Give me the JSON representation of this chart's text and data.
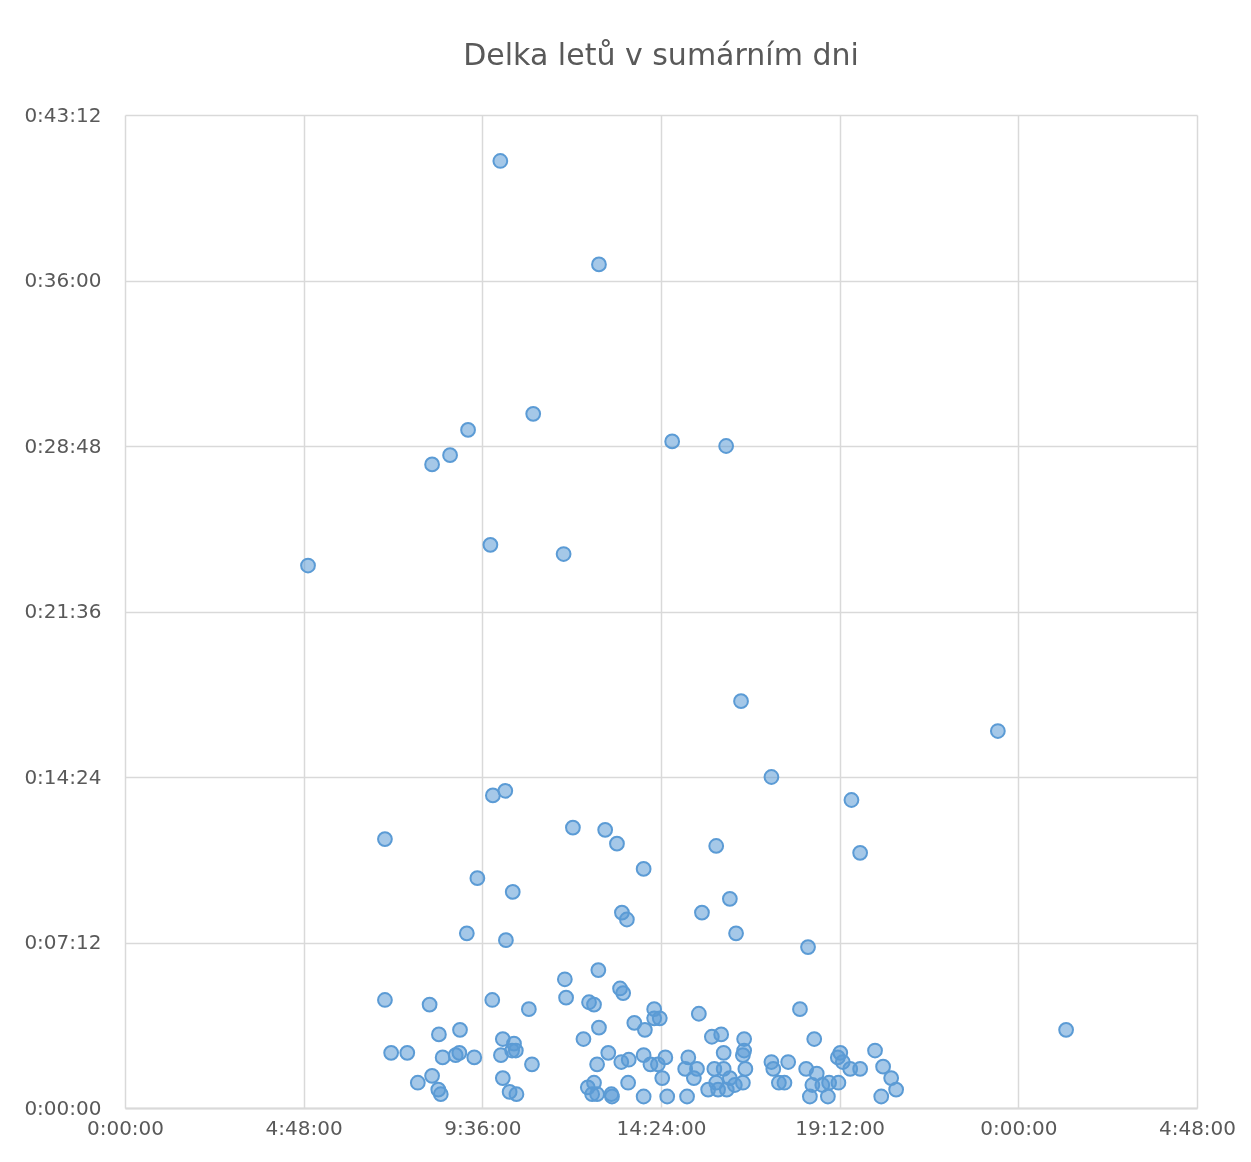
{
  "chart_data": {
    "type": "scatter",
    "title": "Delka letů v sumárním dni",
    "x": [
      "2000-01-01T10:05",
      "2000-01-01T12:44",
      "2000-01-01T10:58",
      "2000-01-01T09:13",
      "2000-01-01T08:44",
      "2000-01-01T08:15",
      "2000-01-01T14:42",
      "2000-01-01T16:09",
      "2000-01-01T09:49",
      "2000-01-01T11:47",
      "2000-01-01T04:55",
      "2000-01-01T16:33",
      "2000-01-01T23:27",
      "2000-01-01T17:22",
      "2000-01-01T19:31",
      "2000-01-01T09:53",
      "2000-01-01T10:13",
      "2000-01-01T06:59",
      "2000-01-01T12:02",
      "2000-01-01T12:54",
      "2000-01-01T13:13",
      "2000-01-01T15:53",
      "2000-01-01T19:45",
      "2000-01-01T13:56",
      "2000-01-01T09:28",
      "2000-01-01T10:25",
      "2000-01-01T16:15",
      "2000-01-01T13:21",
      "2000-01-01T15:30",
      "2000-01-01T13:29",
      "2000-01-01T09:11",
      "2000-01-01T16:25",
      "2000-01-01T10:14",
      "2000-01-01T18:21",
      "2000-01-01T12:43",
      "2000-01-01T11:49",
      "2000-01-01T13:18",
      "2000-01-01T11:51",
      "2000-01-01T13:23",
      "2000-01-01T12:28",
      "2000-01-01T12:36",
      "2000-01-01T06:59",
      "2000-01-01T08:11",
      "2000-01-01T09:52",
      "2000-01-01T10:51",
      "2000-01-01T14:13",
      "2000-01-01T14:22",
      "2000-01-01T14:13",
      "2000-01-01T15:25",
      "2000-01-01T18:08",
      "2000-01-02T01:17",
      "2000-01-01T12:44",
      "2000-01-01T13:41",
      "2000-01-01T13:58",
      "2000-01-01T09:00",
      "2000-01-01T08:26",
      "2000-01-01T15:46",
      "2000-01-01T16:01",
      "2000-01-01T16:38",
      "2000-01-01T18:31",
      "2000-01-01T10:09",
      "2000-01-01T10:27",
      "2000-01-01T12:19",
      "2000-01-01T07:09",
      "2000-01-01T07:35",
      "2000-01-01T08:59",
      "2000-01-01T08:53",
      "2000-01-01T08:32",
      "2000-01-01T09:23",
      "2000-01-01T10:06",
      "2000-01-01T10:24",
      "2000-01-01T10:30",
      "2000-01-01T12:59",
      "2000-01-01T13:56",
      "2000-01-01T13:32",
      "2000-01-01T13:20",
      "2000-01-01T14:31",
      "2000-01-01T15:08",
      "2000-01-01T16:05",
      "2000-01-01T16:36",
      "2000-01-01T16:38",
      "2000-01-01T17:22",
      "2000-01-01T17:49",
      "2000-01-01T19:13",
      "2000-01-01T19:09",
      "2000-01-01T19:17",
      "2000-01-01T20:09",
      "2000-01-01T20:22",
      "2000-01-01T12:41",
      "2000-01-01T10:56",
      "2000-01-01T14:19",
      "2000-01-01T14:07",
      "2000-01-01T15:03",
      "2000-01-01T15:22",
      "2000-01-01T15:50",
      "2000-01-01T16:05",
      "2000-01-01T16:40",
      "2000-01-01T17:25",
      "2000-01-01T18:18",
      "2000-01-01T18:35",
      "2000-01-01T19:29",
      "2000-01-01T19:45",
      "2000-01-01T08:15",
      "2000-01-01T10:09",
      "2000-01-01T14:26",
      "2000-01-01T15:17",
      "2000-01-01T16:15",
      "2000-01-01T20:35",
      "2000-01-01T07:52",
      "2000-01-01T13:31",
      "2000-01-01T15:53",
      "2000-01-01T16:36",
      "2000-01-01T17:34",
      "2000-01-01T17:43",
      "2000-01-01T18:55",
      "2000-01-01T19:10",
      "2000-01-01T12:26",
      "2000-01-01T12:36",
      "2000-01-01T16:23",
      "2000-01-01T18:28",
      "2000-01-01T18:44",
      "2000-01-01T15:40",
      "2000-01-01T15:56",
      "2000-01-01T16:10",
      "2000-01-01T20:43",
      "2000-01-01T08:25",
      "2000-01-01T10:20",
      "2000-01-01T08:29",
      "2000-01-01T10:31",
      "2000-01-01T12:33",
      "2000-01-01T12:41",
      "2000-01-01T13:04",
      "2000-01-01T13:05",
      "2000-01-01T13:56",
      "2000-01-01T14:34",
      "2000-01-01T15:06",
      "2000-01-01T18:24",
      "2000-01-01T18:53",
      "2000-01-01T20:19"
    ],
    "series": [
      {
        "color": "#5b9bd5",
        "values": [
          41.2,
          36.7,
          30.2,
          29.5,
          28.4,
          28.0,
          29.0,
          28.8,
          24.5,
          24.1,
          23.6,
          17.7,
          16.4,
          14.4,
          13.4,
          13.6,
          13.8,
          11.7,
          12.2,
          12.1,
          11.5,
          11.4,
          11.1,
          10.4,
          10.0,
          9.4,
          9.1,
          8.5,
          8.5,
          8.2,
          7.6,
          7.6,
          7.3,
          7.0,
          6.0,
          5.6,
          5.2,
          4.8,
          5.0,
          4.6,
          4.5,
          4.7,
          4.5,
          4.7,
          4.3,
          4.3,
          3.9,
          3.9,
          4.1,
          4.3,
          3.4,
          3.5,
          3.7,
          3.4,
          3.4,
          3.2,
          3.1,
          3.2,
          3.0,
          3.0,
          3.0,
          2.8,
          3.0,
          2.4,
          2.4,
          2.4,
          2.3,
          2.2,
          2.2,
          2.3,
          2.5,
          2.5,
          2.4,
          2.3,
          2.1,
          2.0,
          2.2,
          2.2,
          2.4,
          2.3,
          2.5,
          2.0,
          2.0,
          2.4,
          2.2,
          2.0,
          2.5,
          1.8,
          1.9,
          1.9,
          1.9,
          1.9,
          1.7,
          1.7,
          1.7,
          1.7,
          1.7,
          1.7,
          1.7,
          1.5,
          1.7,
          1.7,
          1.4,
          1.3,
          1.3,
          1.3,
          1.3,
          1.3,
          1.1,
          1.1,
          1.1,
          1.1,
          1.1,
          1.1,
          1.1,
          1.1,
          0.9,
          1.1,
          1.0,
          1.0,
          1.0,
          0.8,
          0.8,
          0.8,
          0.8,
          0.8,
          0.7,
          0.6,
          0.6,
          0.6,
          0.6,
          0.6,
          0.5,
          0.5,
          0.5,
          0.5,
          0.5,
          0.5,
          0.5
        ]
      }
    ],
    "xlim": [
      "2000-01-01T00:00",
      "2000-01-02T04:48"
    ],
    "xticks": [
      {
        "value": "2000-01-01T00:00",
        "label": "0:00:00"
      },
      {
        "value": "2000-01-01T04:48",
        "label": "4:48:00"
      },
      {
        "value": "2000-01-01T09:36",
        "label": "9:36:00"
      },
      {
        "value": "2000-01-01T14:24",
        "label": "14:24:00"
      },
      {
        "value": "2000-01-01T19:12",
        "label": "19:12:00"
      },
      {
        "value": "2000-01-02T00:00",
        "label": "0:00:00"
      },
      {
        "value": "2000-01-02T04:48",
        "label": "4:48:00"
      }
    ],
    "ylim": [
      0,
      43.2
    ],
    "yticks": [
      {
        "value": 0,
        "label": "0:00:00"
      },
      {
        "value": 7.2,
        "label": "0:07:12"
      },
      {
        "value": 14.4,
        "label": "0:14:24"
      },
      {
        "value": 21.6,
        "label": "0:21:36"
      },
      {
        "value": 28.8,
        "label": "0:28:48"
      },
      {
        "value": 36,
        "label": "0:36:00"
      },
      {
        "value": 43.2,
        "label": "0:43:12"
      }
    ],
    "grid": true,
    "marker": "circle"
  }
}
